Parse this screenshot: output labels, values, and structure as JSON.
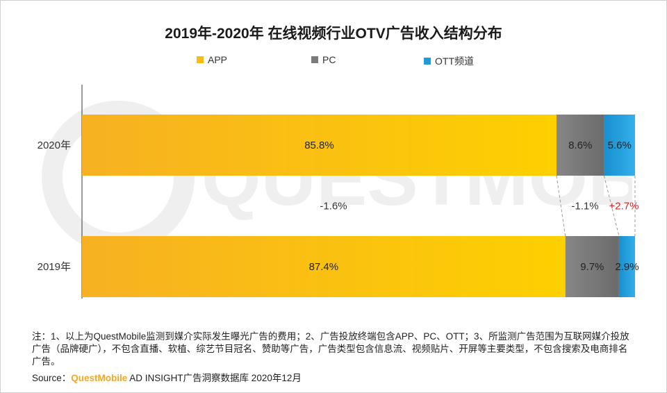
{
  "chart_data": {
    "type": "bar",
    "orientation": "horizontal",
    "stacked": true,
    "title": "2019年-2020年 在线视频行业OTV广告收入结构分布",
    "categories": [
      "2020年",
      "2019年"
    ],
    "series": [
      {
        "name": "APP",
        "values": [
          85.8,
          87.4
        ],
        "labels": [
          "85.8%",
          "87.4%"
        ],
        "color": "#fbbd12"
      },
      {
        "name": "PC",
        "values": [
          8.6,
          9.7
        ],
        "labels": [
          "8.6%",
          "9.7%"
        ],
        "color": "#7b7b7b"
      },
      {
        "name": "OTT频道",
        "values": [
          5.6,
          2.9
        ],
        "labels": [
          "5.6%",
          "2.9%"
        ],
        "color": "#1f9ad6"
      }
    ],
    "changes": [
      {
        "series": "APP",
        "label": "-1.6%",
        "color": "#333333"
      },
      {
        "series": "PC",
        "label": "-1.1%",
        "color": "#333333"
      },
      {
        "series": "OTT频道",
        "label": "+2.7%",
        "color": "#e02020"
      }
    ],
    "xlim": [
      0,
      100
    ],
    "legend_position": "top-center",
    "grid": false
  },
  "footer": {
    "note": "注：1、以上为QuestMobile监测到媒介实际发生曝光广告的费用；2、广告投放终端包含APP、PC、OTT；3、所监测广告范围为互联网媒介投放广告（品牌硬广），不包含直播、软植、综艺节目冠名、赞助等广告，广告类型包含信息流、视频贴片、开屏等主要类型，不包含搜索及电商排名广告。",
    "source_prefix": "Source：",
    "source_brand": "QuestMobile",
    "source_rest": " AD INSIGHT广告洞察数据库 2020年12月"
  },
  "watermark_text": "QUESTMOBILE"
}
